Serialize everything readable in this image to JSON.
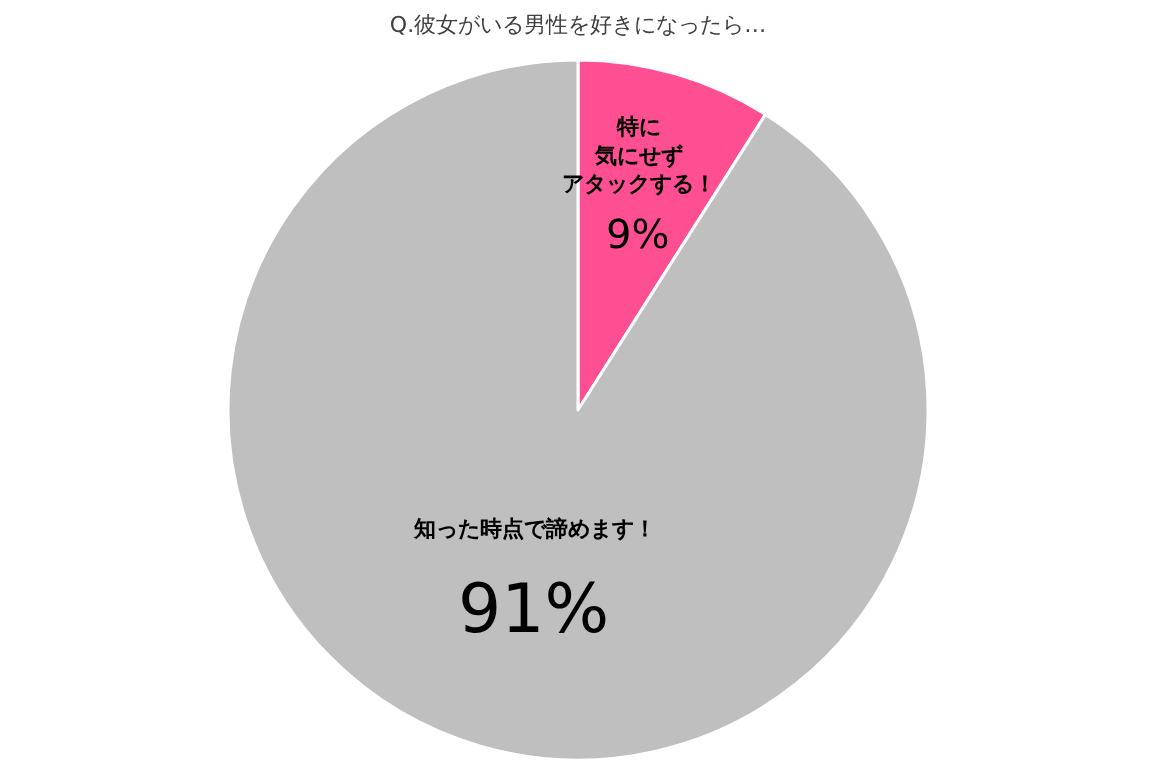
{
  "chart_data": {
    "type": "pie",
    "title": "Q.彼女がいる男性を好きになったら…",
    "categories": [
      "特に気にせずアタックする！",
      "知った時点で諦めます！"
    ],
    "values": [
      9,
      91
    ],
    "colors": [
      "#ff4f93",
      "#bfbfbf"
    ],
    "value_labels": [
      "9%",
      "91%"
    ]
  }
}
